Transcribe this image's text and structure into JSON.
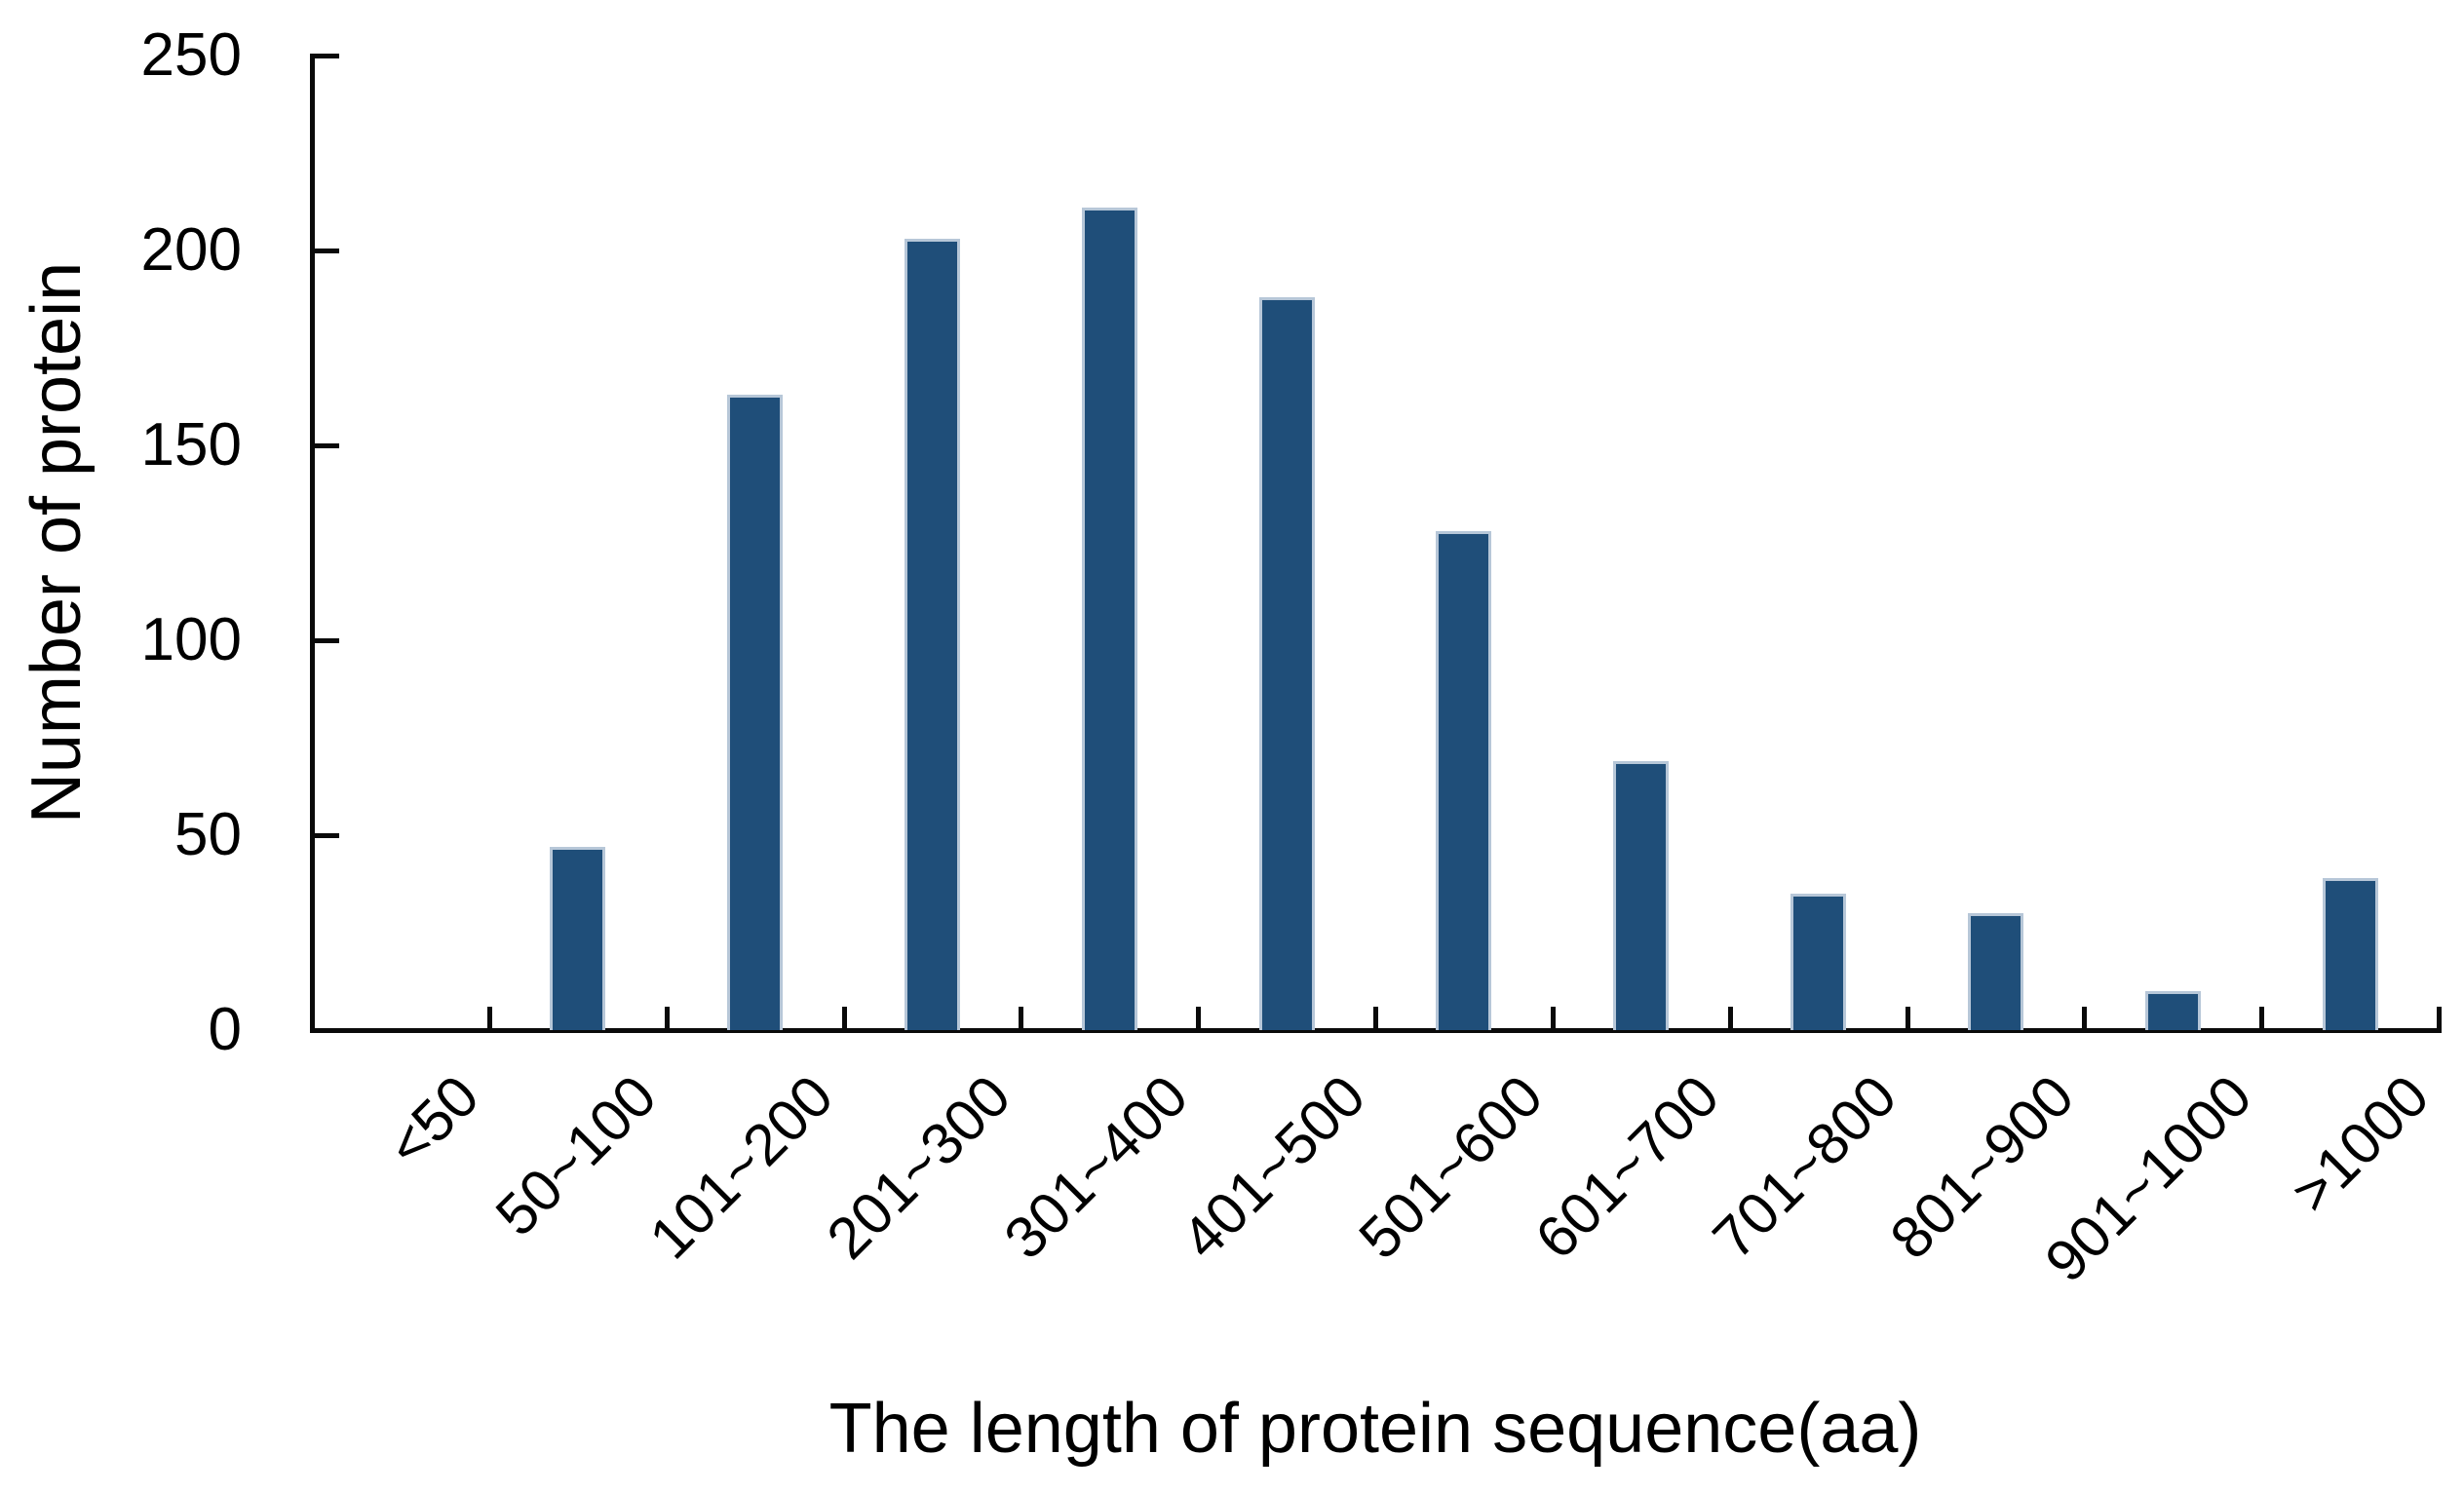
{
  "chart_data": {
    "type": "bar",
    "title": "",
    "xlabel": "The length of protein sequence(aa)",
    "ylabel": "Number of protein",
    "categories": [
      "<50",
      "50~100",
      "101~200",
      "201~300",
      "301~400",
      "401~500",
      "501~600",
      "601~700",
      "701~800",
      "801~900",
      "901~1000",
      ">1000"
    ],
    "values": [
      0,
      47,
      163,
      203,
      211,
      188,
      128,
      69,
      35,
      30,
      10,
      39
    ],
    "ylim": [
      0,
      250
    ],
    "yticks": [
      0,
      50,
      100,
      150,
      200,
      250
    ],
    "grid": false,
    "legend": null,
    "bar_color": "#1F4E79",
    "bar_edge_color": "#B7C7D8",
    "axis_color": "#0A0A0A",
    "text_color": "#000000"
  }
}
